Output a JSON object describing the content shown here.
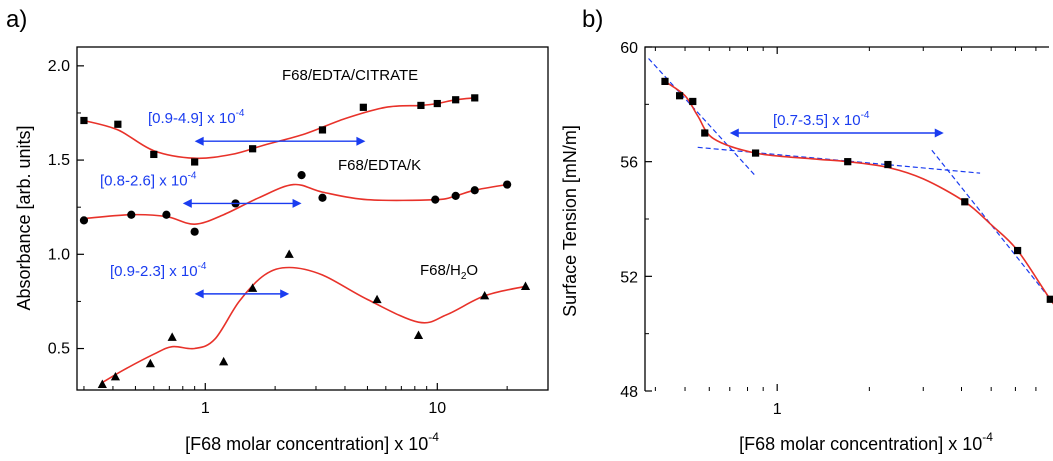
{
  "chart_data": [
    {
      "type": "scatter",
      "panel_label": "a)",
      "xlabel": "[F68 molar concentration] x 10",
      "xlabel_exp": "-4",
      "ylabel": "Absorbance [arb. units]",
      "x_scale": "log",
      "xlim": [
        0.28,
        30
      ],
      "ylim": [
        0.28,
        2.1
      ],
      "x_ticks": [
        1,
        10
      ],
      "x_tick_labels": [
        "1",
        "10"
      ],
      "y_ticks": [
        0.5,
        1.0,
        1.5,
        2.0
      ],
      "y_tick_labels": [
        "0.5",
        "1.0",
        "1.5",
        "2.0"
      ],
      "fit_color": "#e8322a",
      "arrow_color": "#1a3cf0",
      "series": [
        {
          "name": "F68/EDTA/CITRATE",
          "marker": "square",
          "points": [
            [
              0.3,
              1.71
            ],
            [
              0.42,
              1.69
            ],
            [
              0.6,
              1.53
            ],
            [
              0.9,
              1.49
            ],
            [
              1.6,
              1.56
            ],
            [
              3.2,
              1.66
            ],
            [
              4.8,
              1.78
            ],
            [
              8.5,
              1.79
            ],
            [
              10,
              1.8
            ],
            [
              12,
              1.82
            ],
            [
              14.5,
              1.83
            ]
          ],
          "fit": [
            [
              0.3,
              1.71
            ],
            [
              0.42,
              1.66
            ],
            [
              0.6,
              1.55
            ],
            [
              0.9,
              1.51
            ],
            [
              1.3,
              1.53
            ],
            [
              1.8,
              1.58
            ],
            [
              2.7,
              1.64
            ],
            [
              4.0,
              1.72
            ],
            [
              6.0,
              1.78
            ],
            [
              8.5,
              1.79
            ],
            [
              10,
              1.8
            ],
            [
              12,
              1.82
            ],
            [
              14.5,
              1.83
            ]
          ],
          "annotation": {
            "text": "[0.9-4.9] x 10",
            "exp": "-4",
            "from": 0.9,
            "to": 4.9,
            "y": 1.6
          }
        },
        {
          "name": "F68/EDTA/K",
          "marker": "circle",
          "points": [
            [
              0.3,
              1.18
            ],
            [
              0.48,
              1.21
            ],
            [
              0.68,
              1.21
            ],
            [
              0.9,
              1.12
            ],
            [
              1.35,
              1.27
            ],
            [
              2.6,
              1.42
            ],
            [
              3.2,
              1.3
            ],
            [
              9.8,
              1.29
            ],
            [
              12,
              1.31
            ],
            [
              14.5,
              1.34
            ],
            [
              20,
              1.37
            ]
          ],
          "fit": [
            [
              0.3,
              1.19
            ],
            [
              0.48,
              1.21
            ],
            [
              0.68,
              1.2
            ],
            [
              0.9,
              1.16
            ],
            [
              1.2,
              1.21
            ],
            [
              1.7,
              1.3
            ],
            [
              2.4,
              1.37
            ],
            [
              3.2,
              1.33
            ],
            [
              5.0,
              1.29
            ],
            [
              9.8,
              1.29
            ],
            [
              12,
              1.31
            ],
            [
              14.5,
              1.34
            ],
            [
              20,
              1.37
            ]
          ],
          "annotation": {
            "text": "[0.8-2.6] x 10",
            "exp": "-4",
            "from": 0.8,
            "to": 2.6,
            "y": 1.27
          }
        },
        {
          "name": "F68/H",
          "name_sub": "2",
          "name_tail": "O",
          "marker": "triangle",
          "points": [
            [
              0.36,
              0.31
            ],
            [
              0.41,
              0.35
            ],
            [
              0.58,
              0.42
            ],
            [
              0.72,
              0.56
            ],
            [
              1.2,
              0.43
            ],
            [
              1.6,
              0.82
            ],
            [
              2.3,
              1.0
            ],
            [
              5.5,
              0.76
            ],
            [
              8.3,
              0.57
            ],
            [
              16,
              0.78
            ],
            [
              24,
              0.83
            ]
          ],
          "fit": [
            [
              0.36,
              0.32
            ],
            [
              0.45,
              0.39
            ],
            [
              0.6,
              0.47
            ],
            [
              0.72,
              0.51
            ],
            [
              0.9,
              0.5
            ],
            [
              1.1,
              0.55
            ],
            [
              1.4,
              0.75
            ],
            [
              1.8,
              0.89
            ],
            [
              2.3,
              0.93
            ],
            [
              3.2,
              0.89
            ],
            [
              5.0,
              0.76
            ],
            [
              8.3,
              0.64
            ],
            [
              11,
              0.68
            ],
            [
              16,
              0.78
            ],
            [
              24,
              0.83
            ]
          ],
          "annotation": {
            "text": "[0.9-2.3] x 10",
            "exp": "-4",
            "from": 0.9,
            "to": 2.3,
            "y": 0.79
          }
        }
      ]
    },
    {
      "type": "scatter",
      "panel_label": "b)",
      "xlabel": "[F68 molar concentration] x 10",
      "xlabel_exp": "-4",
      "ylabel": "Surface Tension [mN/m]",
      "x_scale": "log",
      "xlim": [
        0.37,
        11
      ],
      "ylim": [
        48,
        60
      ],
      "x_ticks": [
        1,
        10
      ],
      "x_tick_labels": [
        "1",
        "10"
      ],
      "y_ticks": [
        48,
        52,
        56,
        60
      ],
      "y_tick_labels": [
        "48",
        "52",
        "56",
        "60"
      ],
      "points": [
        [
          0.43,
          58.8
        ],
        [
          0.48,
          58.3
        ],
        [
          0.53,
          58.1
        ],
        [
          0.58,
          57.0
        ],
        [
          0.85,
          56.3
        ],
        [
          1.7,
          56.0
        ],
        [
          2.3,
          55.9
        ],
        [
          4.1,
          54.6
        ],
        [
          6.1,
          52.9
        ],
        [
          7.8,
          51.2
        ],
        [
          10,
          49.6
        ]
      ],
      "fit": [
        [
          0.43,
          58.8
        ],
        [
          0.5,
          58.3
        ],
        [
          0.55,
          57.6
        ],
        [
          0.62,
          56.8
        ],
        [
          0.85,
          56.3
        ],
        [
          1.3,
          56.1
        ],
        [
          1.7,
          56.0
        ],
        [
          2.3,
          55.8
        ],
        [
          3.0,
          55.4
        ],
        [
          4.1,
          54.6
        ],
        [
          5.0,
          53.8
        ],
        [
          6.1,
          52.9
        ],
        [
          7.8,
          51.2
        ],
        [
          10,
          49.6
        ]
      ],
      "tangents": [
        [
          [
            0.38,
            59.6
          ],
          [
            0.85,
            55.5
          ]
        ],
        [
          [
            0.55,
            56.5
          ],
          [
            4.6,
            55.6
          ]
        ],
        [
          [
            3.2,
            56.4
          ],
          [
            11,
            49.2
          ]
        ]
      ],
      "annotation": {
        "text": "[0.7-3.5] x 10",
        "exp": "-4",
        "from": 0.7,
        "to": 3.5,
        "y": 57.0
      }
    }
  ]
}
